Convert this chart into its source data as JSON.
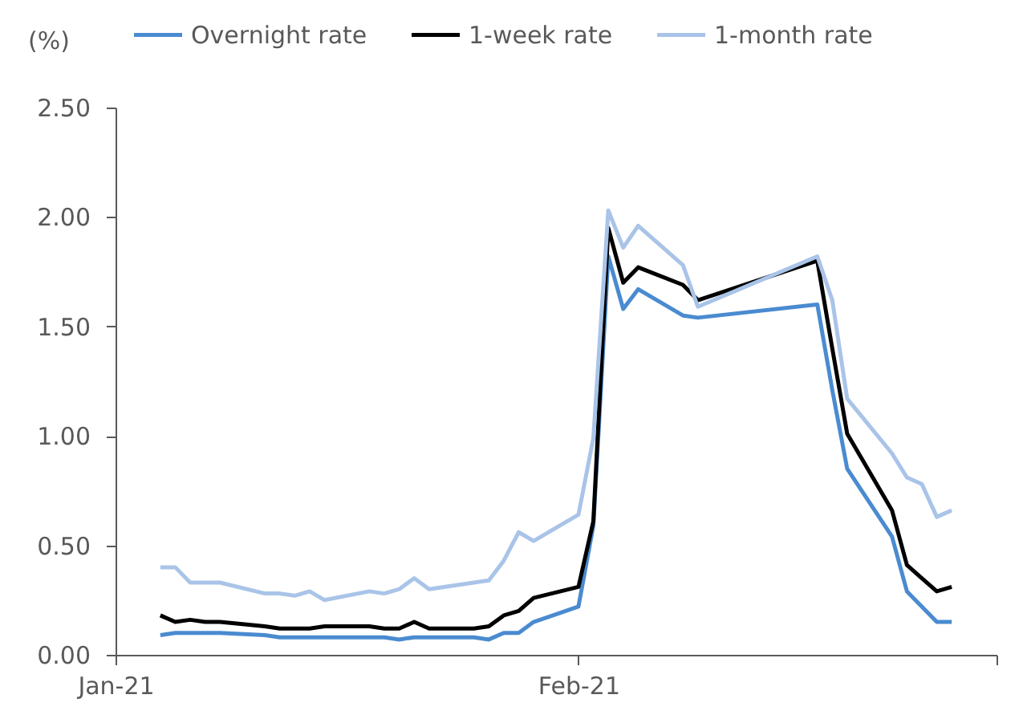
{
  "chart_data": {
    "type": "line",
    "ylabel": "(%)",
    "x": [
      "2021-01-04",
      "2021-01-05",
      "2021-01-06",
      "2021-01-07",
      "2021-01-08",
      "2021-01-11",
      "2021-01-12",
      "2021-01-13",
      "2021-01-14",
      "2021-01-15",
      "2021-01-18",
      "2021-01-19",
      "2021-01-20",
      "2021-01-21",
      "2021-01-22",
      "2021-01-25",
      "2021-01-26",
      "2021-01-27",
      "2021-01-28",
      "2021-01-29",
      "2021-02-01",
      "2021-02-02",
      "2021-02-03",
      "2021-02-04",
      "2021-02-05",
      "2021-02-08",
      "2021-02-09",
      "2021-02-17",
      "2021-02-18",
      "2021-02-19",
      "2021-02-22",
      "2021-02-23",
      "2021-02-24",
      "2021-02-25",
      "2021-02-26"
    ],
    "series": [
      {
        "name": "Overnight rate",
        "color": "#4a8bd0",
        "values": [
          0.09,
          0.1,
          0.1,
          0.1,
          0.1,
          0.09,
          0.08,
          0.08,
          0.08,
          0.08,
          0.08,
          0.08,
          0.07,
          0.08,
          0.08,
          0.08,
          0.07,
          0.1,
          0.1,
          0.15,
          0.22,
          0.59,
          1.82,
          1.58,
          1.67,
          1.55,
          1.54,
          1.6,
          1.21,
          0.85,
          0.54,
          0.29,
          0.22,
          0.15,
          0.15
        ]
      },
      {
        "name": "1-week rate",
        "color": "#000000",
        "values": [
          0.18,
          0.15,
          0.16,
          0.15,
          0.15,
          0.13,
          0.12,
          0.12,
          0.12,
          0.13,
          0.13,
          0.12,
          0.12,
          0.15,
          0.12,
          0.12,
          0.13,
          0.18,
          0.2,
          0.26,
          0.31,
          0.61,
          1.95,
          1.7,
          1.77,
          1.69,
          1.62,
          1.8,
          1.4,
          1.01,
          0.66,
          0.41,
          0.35,
          0.29,
          0.31
        ]
      },
      {
        "name": "1-month rate",
        "color": "#a9c4e8",
        "values": [
          0.4,
          0.4,
          0.33,
          0.33,
          0.33,
          0.28,
          0.28,
          0.27,
          0.29,
          0.25,
          0.29,
          0.28,
          0.3,
          0.35,
          0.3,
          0.33,
          0.34,
          0.43,
          0.56,
          0.52,
          0.64,
          0.99,
          2.03,
          1.86,
          1.96,
          1.78,
          1.59,
          1.82,
          1.62,
          1.17,
          0.92,
          0.81,
          0.78,
          0.63,
          0.66
        ]
      }
    ],
    "xlim": [
      "2021-01-01",
      "2021-03-01"
    ],
    "xticks": [
      {
        "value": "2021-01-01",
        "label": "Jan-21"
      },
      {
        "value": "2021-02-01",
        "label": "Feb-21"
      },
      {
        "value": "2021-03-01",
        "label": null
      }
    ],
    "ylim": [
      0,
      2.5
    ],
    "yticks": [
      {
        "value": 0,
        "label": "0.00"
      },
      {
        "value": 0.5,
        "label": "0.50"
      },
      {
        "value": 1,
        "label": "1.00"
      },
      {
        "value": 1.5,
        "label": "1.50"
      },
      {
        "value": 2,
        "label": "2.00"
      },
      {
        "value": 2.5,
        "label": "2.50"
      }
    ],
    "grid": false,
    "legend": "top",
    "marker": "none",
    "line_style": "solid"
  }
}
